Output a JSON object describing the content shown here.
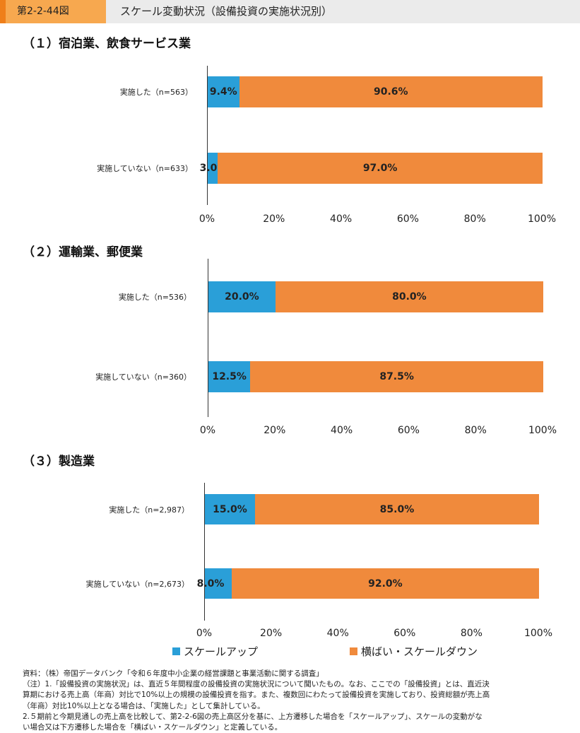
{
  "header": {
    "figure_number": "第2-2-44図",
    "title": "スケール変動状況（設備投資の実施状況別）"
  },
  "legend": {
    "up": "スケールアップ",
    "flat": "横ばい・スケールダウン"
  },
  "colors": {
    "up": "#2a9fd8",
    "flat": "#f08a3c"
  },
  "chart_data": [
    {
      "type": "bar",
      "orientation": "horizontal",
      "stacked": true,
      "title": "（１）宿泊業、飲食サービス業",
      "categories": [
        "実施した（n=563）",
        "実施していない（n=633）"
      ],
      "series": [
        {
          "name": "スケールアップ",
          "values": [
            9.4,
            3.0
          ],
          "labels": [
            "9.4%",
            "3.0%"
          ]
        },
        {
          "name": "横ばい・スケールダウン",
          "values": [
            90.6,
            97.0
          ],
          "labels": [
            "90.6%",
            "97.0%"
          ]
        }
      ],
      "xlim": [
        0,
        100
      ],
      "xticks": [
        "0%",
        "20%",
        "40%",
        "60%",
        "80%",
        "100%"
      ]
    },
    {
      "type": "bar",
      "orientation": "horizontal",
      "stacked": true,
      "title": "（２）運輸業、郵便業",
      "categories": [
        "実施した（n=536）",
        "実施していない（n=360）"
      ],
      "series": [
        {
          "name": "スケールアップ",
          "values": [
            20.0,
            12.5
          ],
          "labels": [
            "20.0%",
            "12.5%"
          ]
        },
        {
          "name": "横ばい・スケールダウン",
          "values": [
            80.0,
            87.5
          ],
          "labels": [
            "80.0%",
            "87.5%"
          ]
        }
      ],
      "xlim": [
        0,
        100
      ],
      "xticks": [
        "0%",
        "20%",
        "40%",
        "60%",
        "80%",
        "100%"
      ]
    },
    {
      "type": "bar",
      "orientation": "horizontal",
      "stacked": true,
      "title": "（３）製造業",
      "categories": [
        "実施した（n=2,987）",
        "実施していない（n=2,673）"
      ],
      "series": [
        {
          "name": "スケールアップ",
          "values": [
            15.0,
            8.0
          ],
          "labels": [
            "15.0%",
            "8.0%"
          ]
        },
        {
          "name": "横ばい・スケールダウン",
          "values": [
            85.0,
            92.0
          ],
          "labels": [
            "85.0%",
            "92.0%"
          ]
        }
      ],
      "xlim": [
        0,
        100
      ],
      "xticks": [
        "0%",
        "20%",
        "40%",
        "60%",
        "80%",
        "100%"
      ]
    }
  ],
  "notes": [
    "資料：（株）帝国データバンク「令和６年度中小企業の経営課題と事業活動に関する調査」",
    "（注）1.「設備投資の実施状況」は、直近５年間程度の設備投資の実施状況について聞いたもの。なお、ここでの「設備投資」とは、直近決",
    "算期における売上高（年商）対比で10%以上の規模の設備投資を指す。また、複数回にわたって設備投資を実施しており、投資総額が売上高",
    "（年商）対比10%以上となる場合は、「実施した」として集計している。",
    "2.５期前と今期見通しの売上高を比較して、第2-2-6図の売上高区分を基に、上方遷移した場合を「スケールアップ」、スケールの変動がな",
    "い場合又は下方遷移した場合を「横ばい・スケールダウン」と定義している。"
  ]
}
